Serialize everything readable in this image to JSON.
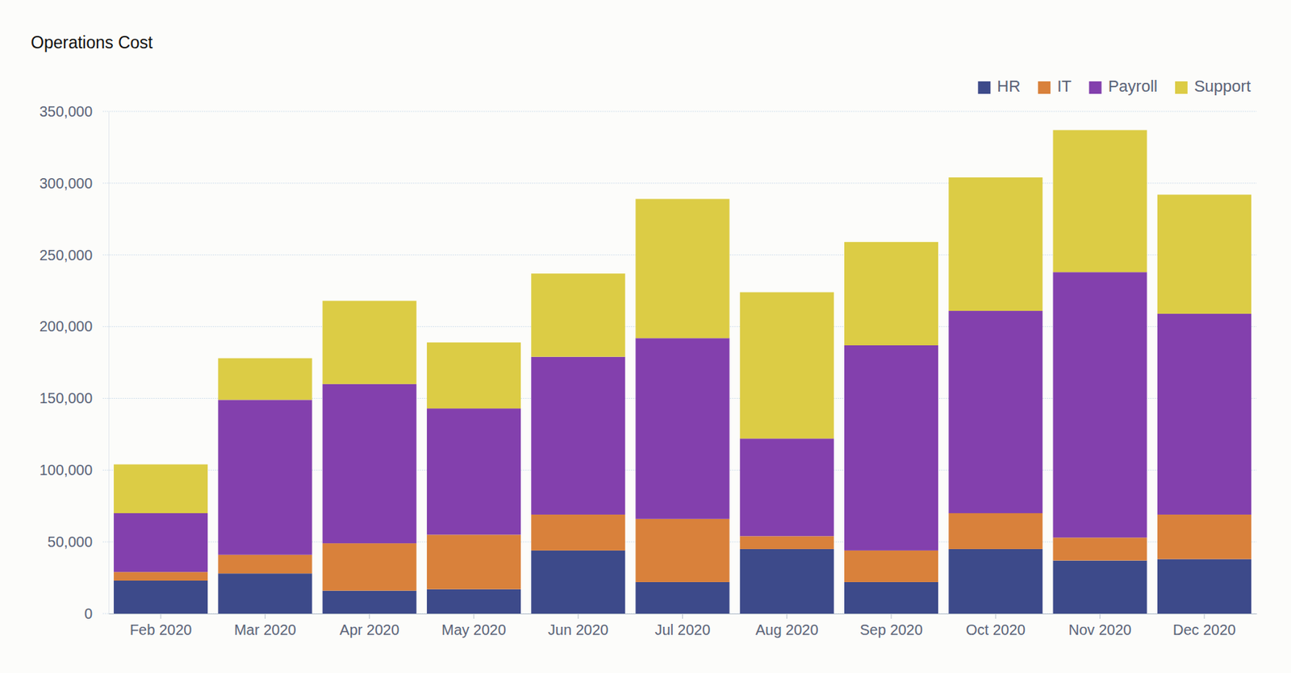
{
  "chart_data": {
    "type": "bar",
    "title": "Operations Cost",
    "stacked": true,
    "grid": true,
    "legend": "top-right",
    "categories": [
      "Feb 2020",
      "Mar 2020",
      "Apr 2020",
      "May 2020",
      "Jun 2020",
      "Jul 2020",
      "Aug 2020",
      "Sep 2020",
      "Oct 2020",
      "Nov 2020",
      "Dec 2020"
    ],
    "series": [
      {
        "name": "HR",
        "color": "#3d4a8a",
        "values": [
          23000,
          28000,
          16000,
          17000,
          44000,
          22000,
          45000,
          22000,
          45000,
          37000,
          38000
        ]
      },
      {
        "name": "IT",
        "color": "#d9813b",
        "values": [
          6000,
          13000,
          33000,
          38000,
          25000,
          44000,
          9000,
          22000,
          25000,
          16000,
          31000
        ]
      },
      {
        "name": "Payroll",
        "color": "#8340ad",
        "values": [
          41000,
          108000,
          111000,
          88000,
          110000,
          126000,
          68000,
          143000,
          141000,
          185000,
          140000
        ]
      },
      {
        "name": "Support",
        "color": "#dccc45",
        "values": [
          34000,
          29000,
          58000,
          46000,
          58000,
          97000,
          102000,
          72000,
          93000,
          99000,
          83000
        ]
      }
    ],
    "ylim": [
      0,
      350000
    ],
    "yticks": [
      0,
      {
        "value": 50000,
        "label": "50,000"
      },
      {
        "value": 100000,
        "label": "100,000"
      },
      {
        "value": 150000,
        "label": "150,000"
      },
      {
        "value": 200000,
        "label": "200,000"
      },
      {
        "value": 250000,
        "label": "250,000"
      },
      {
        "value": 300000,
        "label": "300,000"
      },
      {
        "value": 350000,
        "label": "350,000"
      }
    ]
  }
}
